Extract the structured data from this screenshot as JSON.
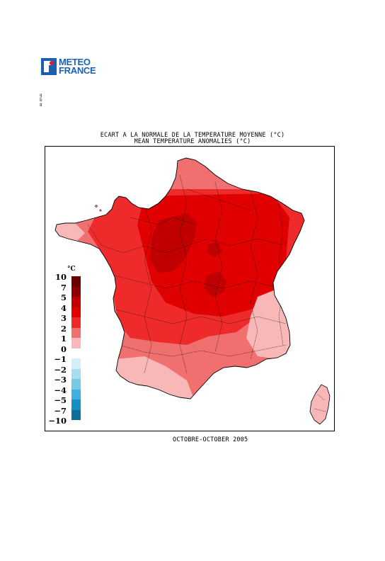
{
  "logo": {
    "line1": "METEO",
    "line2": "FRANCE",
    "brand_color": "#1a5fb4"
  },
  "side_marks": [
    "g",
    "b",
    "8"
  ],
  "title": {
    "line1": "ECART A LA NORMALE DE LA TEMPERATURE MOYENNE (°C)",
    "line2": "MEAN TEMPERATURE ANOMALIES (°C)"
  },
  "legend": {
    "unit": "°C",
    "items": [
      {
        "label": "10",
        "color": "#6b0000"
      },
      {
        "label": "7",
        "color": "#8b0000"
      },
      {
        "label": "5",
        "color": "#c00000"
      },
      {
        "label": "4",
        "color": "#e00000"
      },
      {
        "label": "3",
        "color": "#ee2a2a"
      },
      {
        "label": "2",
        "color": "#f07070"
      },
      {
        "label": "1",
        "color": "#f9b8b8"
      },
      {
        "label": "0",
        "color": "#ffffff"
      },
      {
        "label": "−1",
        "color": "#d4eef8"
      },
      {
        "label": "−2",
        "color": "#a8dcf0"
      },
      {
        "label": "−3",
        "color": "#78c8e8"
      },
      {
        "label": "−4",
        "color": "#3fb0dd"
      },
      {
        "label": "−5",
        "color": "#1590c4"
      },
      {
        "label": "−7",
        "color": "#0d6f9a"
      },
      {
        "label": "−10",
        "color": "#08506e"
      }
    ]
  },
  "map": {
    "anomaly_colors": {
      "above_4": "#c00000",
      "3_to_4": "#e00000",
      "2_to_3": "#ee2a2a",
      "1_to_2": "#f07070",
      "0_to_1": "#f9b8b8"
    }
  },
  "footer": "OCTOBRE-OCTOBER 2005"
}
